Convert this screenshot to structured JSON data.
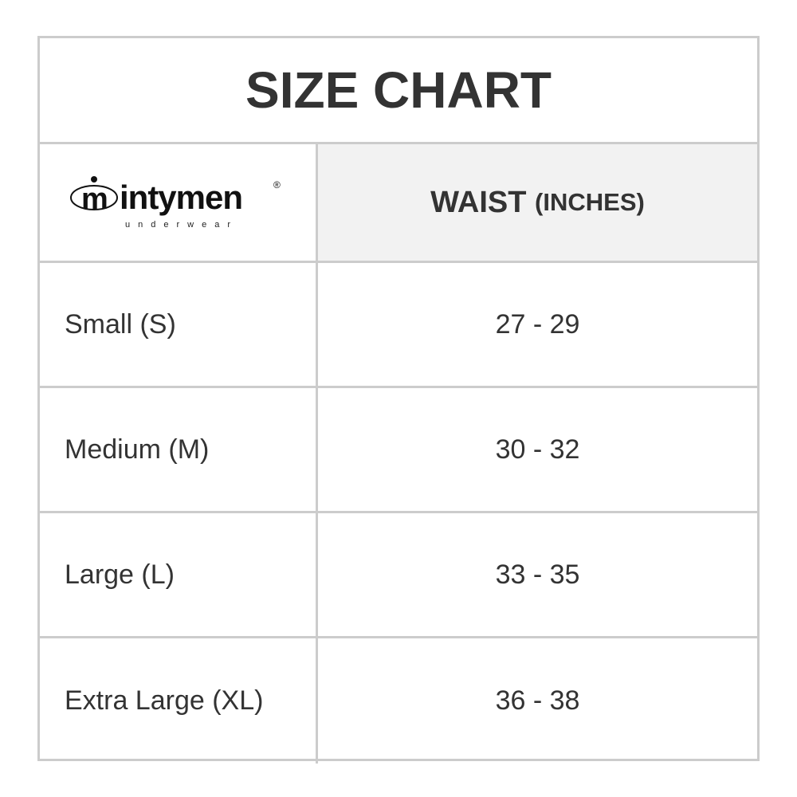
{
  "title": "SIZE CHART",
  "logo": {
    "brand": "intymen",
    "tagline": "underwear",
    "mark": "®"
  },
  "header": {
    "waist": "WAIST",
    "unit": "(INCHES)"
  },
  "rows": [
    {
      "size": "Small (S)",
      "waist": "27 - 29"
    },
    {
      "size": "Medium (M)",
      "waist": "30 - 32"
    },
    {
      "size": "Large (L)",
      "waist": "33 - 35"
    },
    {
      "size": "Extra Large (XL)",
      "waist": "36 - 38"
    }
  ],
  "colors": {
    "border": "#cccccc",
    "header_bg": "#f2f2f2",
    "text": "#333333"
  }
}
